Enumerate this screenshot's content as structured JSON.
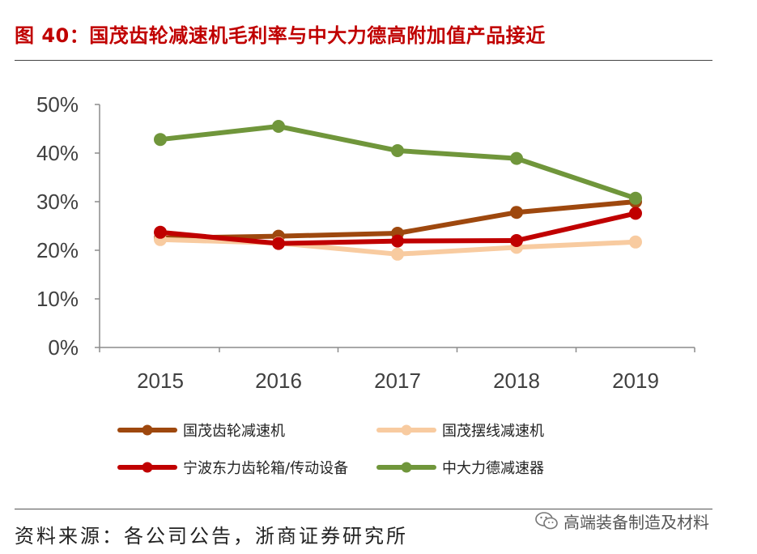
{
  "figure": {
    "title": "图 40：国茂齿轮减速机毛利率与中大力德高附加值产品接近",
    "source": "资料来源：各公司公告，浙商证券研究所",
    "watermark": "高端装备制造及材料",
    "watermark_icon": "wechat-icon"
  },
  "chart_data": {
    "type": "line",
    "title": "",
    "xlabel": "",
    "ylabel": "",
    "categories": [
      "2015",
      "2016",
      "2017",
      "2018",
      "2019"
    ],
    "ylim": [
      0,
      50
    ],
    "yticks": [
      "0%",
      "10%",
      "20%",
      "30%",
      "40%",
      "50%"
    ],
    "grid": false,
    "legend_position": "bottom",
    "series": [
      {
        "name": "国茂齿轮减速机",
        "color": "#9e480e",
        "values": [
          22.5,
          22.9,
          23.5,
          27.8,
          30.0
        ]
      },
      {
        "name": "国茂摆线减速机",
        "color": "#f8cba0",
        "values": [
          22.2,
          21.5,
          19.2,
          20.6,
          21.7
        ]
      },
      {
        "name": "宁波东力齿轮箱/传动设备",
        "color": "#c00000",
        "values": [
          23.7,
          21.4,
          21.9,
          22.0,
          27.6
        ]
      },
      {
        "name": "中大力德减速器",
        "color": "#70963b",
        "values": [
          42.8,
          45.5,
          40.5,
          38.9,
          30.7
        ]
      }
    ]
  }
}
